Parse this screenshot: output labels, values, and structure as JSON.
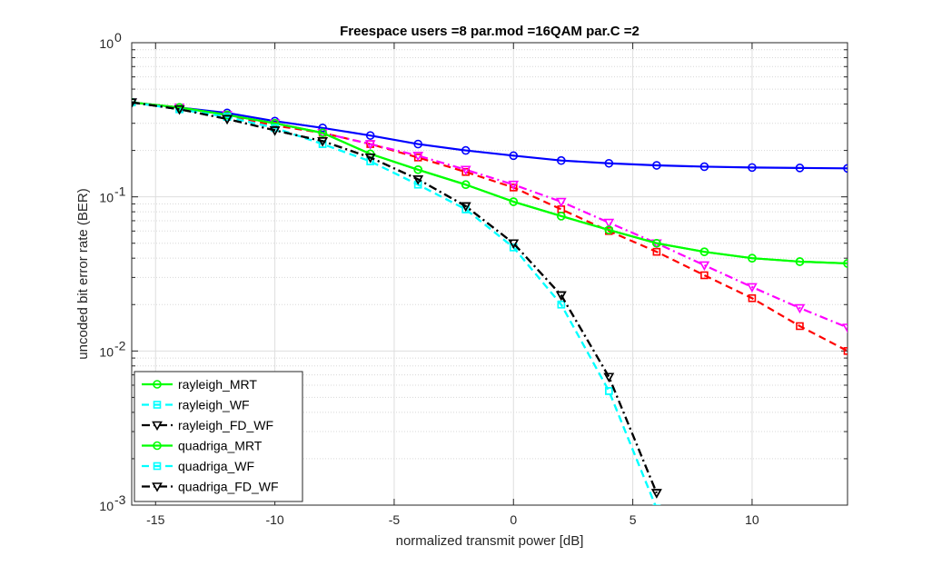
{
  "chart_data": {
    "type": "line",
    "title": "Freespace users =8 par.mod =16QAM par.C =2",
    "xlabel": "normalized transmit power [dB]",
    "ylabel": "uncoded bit error rate (BER)",
    "xlim": [
      -16,
      14
    ],
    "ylim": [
      0.001,
      1
    ],
    "yscale": "log",
    "grid": true,
    "legend_position": "bottom-left",
    "x_ticks": [
      -15,
      -10,
      -5,
      0,
      5,
      10
    ],
    "y_ticks": [
      {
        "value": 1,
        "mantissa": "10",
        "exponent": "0"
      },
      {
        "value": 0.1,
        "mantissa": "10",
        "exponent": "-1"
      },
      {
        "value": 0.01,
        "mantissa": "10",
        "exponent": "-2"
      },
      {
        "value": 0.001,
        "mantissa": "10",
        "exponent": "-3"
      }
    ],
    "series": [
      {
        "name": "rayleigh_MRT",
        "color": "#00ff00",
        "dash": "solid",
        "marker": "circle",
        "x": [
          -16,
          -14,
          -12,
          -10,
          -8,
          -6,
          -4,
          -2,
          0,
          2,
          4,
          6,
          8,
          10,
          12,
          14
        ],
        "y": [
          0.41,
          0.38,
          0.34,
          0.3,
          0.26,
          0.19,
          0.15,
          0.12,
          0.093,
          0.075,
          0.061,
          0.05,
          0.044,
          0.04,
          0.038,
          0.037
        ]
      },
      {
        "name": "rayleigh_WF",
        "color": "#00ffff",
        "dash": "dashed",
        "marker": "square",
        "x": [
          -16,
          -14,
          -12,
          -10,
          -8,
          -6,
          -4,
          -2,
          0,
          2,
          4,
          6
        ],
        "y": [
          0.41,
          0.37,
          0.33,
          0.28,
          0.22,
          0.17,
          0.12,
          0.083,
          0.047,
          0.02,
          0.0055,
          0.00095
        ]
      },
      {
        "name": "rayleigh_FD_WF",
        "color": "#000000",
        "dash": "dashdot",
        "marker": "triangle-down",
        "x": [
          -16,
          -14,
          -12,
          -10,
          -8,
          -6,
          -4,
          -2,
          0,
          2,
          4,
          6
        ],
        "y": [
          0.41,
          0.37,
          0.32,
          0.27,
          0.23,
          0.18,
          0.13,
          0.087,
          0.05,
          0.023,
          0.0068,
          0.0012
        ]
      },
      {
        "name": "quadriga_MRT",
        "color": "#00ff00",
        "dash": "solid",
        "marker": "circle",
        "x": [
          -16,
          -14,
          -12,
          -10,
          -8,
          -6,
          -4,
          -2,
          0,
          2,
          4,
          6,
          8,
          10,
          12,
          14
        ],
        "y": [
          0.41,
          0.38,
          0.34,
          0.3,
          0.26,
          0.19,
          0.15,
          0.12,
          0.093,
          0.075,
          0.061,
          0.05,
          0.044,
          0.04,
          0.038,
          0.037
        ]
      },
      {
        "name": "quadriga_WF",
        "color": "#00ffff",
        "dash": "dashed",
        "marker": "square",
        "x": [
          -16,
          -14,
          -12,
          -10,
          -8,
          -6,
          -4,
          -2,
          0,
          2,
          4,
          6
        ],
        "y": [
          0.41,
          0.37,
          0.33,
          0.28,
          0.22,
          0.17,
          0.12,
          0.083,
          0.047,
          0.02,
          0.0055,
          0.00095
        ]
      },
      {
        "name": "quadriga_FD_WF",
        "color": "#000000",
        "dash": "dashdot",
        "marker": "triangle-down",
        "x": [
          -16,
          -14,
          -12,
          -10,
          -8,
          -6,
          -4,
          -2,
          0,
          2,
          4,
          6
        ],
        "y": [
          0.41,
          0.37,
          0.32,
          0.27,
          0.23,
          0.18,
          0.13,
          0.087,
          0.05,
          0.023,
          0.0068,
          0.0012
        ]
      },
      {
        "name": "",
        "in_legend": false,
        "color": "#0000ff",
        "dash": "solid",
        "marker": "circle",
        "x": [
          -16,
          -14,
          -12,
          -10,
          -8,
          -6,
          -4,
          -2,
          0,
          2,
          4,
          6,
          8,
          10,
          12,
          14
        ],
        "y": [
          0.41,
          0.38,
          0.35,
          0.31,
          0.28,
          0.25,
          0.22,
          0.2,
          0.185,
          0.172,
          0.165,
          0.16,
          0.157,
          0.155,
          0.154,
          0.153
        ]
      },
      {
        "name": "",
        "in_legend": false,
        "color": "#ff0000",
        "dash": "dashed",
        "marker": "square",
        "x": [
          -16,
          -14,
          -12,
          -10,
          -8,
          -6,
          -4,
          -2,
          0,
          2,
          4,
          6,
          8,
          10,
          12,
          14
        ],
        "y": [
          0.41,
          0.38,
          0.34,
          0.29,
          0.26,
          0.22,
          0.18,
          0.145,
          0.115,
          0.083,
          0.06,
          0.044,
          0.031,
          0.022,
          0.0145,
          0.01
        ]
      },
      {
        "name": "",
        "in_legend": false,
        "color": "#ff00ff",
        "dash": "dashdot",
        "marker": "triangle-down",
        "x": [
          -16,
          -14,
          -12,
          -10,
          -8,
          -6,
          -4,
          -2,
          0,
          2,
          4,
          6,
          8,
          10,
          12,
          14
        ],
        "y": [
          0.41,
          0.38,
          0.34,
          0.3,
          0.26,
          0.22,
          0.185,
          0.15,
          0.12,
          0.093,
          0.068,
          0.05,
          0.036,
          0.026,
          0.019,
          0.0142
        ]
      }
    ]
  }
}
